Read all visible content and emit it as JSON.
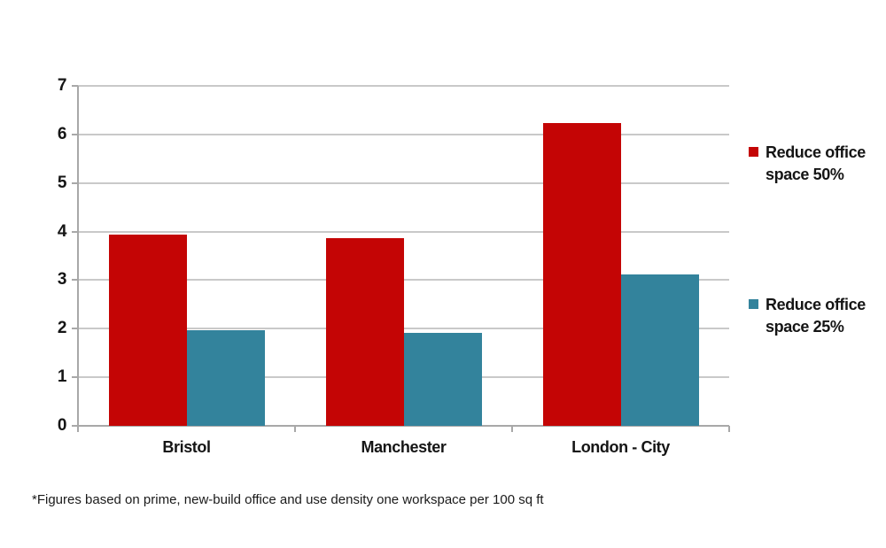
{
  "chart": {
    "footnote": "*Figures based on prime, new-build office and use density one workspace per 100 sq ft"
  },
  "chart_data": {
    "type": "bar",
    "title": "",
    "xlabel": "",
    "ylabel": "",
    "categories": [
      "Bristol",
      "Manchester",
      "London - City"
    ],
    "series": [
      {
        "name": "Reduce office space 50%",
        "color": "#c40505",
        "values": [
          3.93,
          3.86,
          6.24
        ]
      },
      {
        "name": "Reduce office space 25%",
        "color": "#33839c",
        "values": [
          1.96,
          1.92,
          3.12
        ]
      }
    ],
    "ylim": [
      0,
      7
    ],
    "ytick_step": 1,
    "ytick_labels": [
      "0",
      "1",
      "2",
      "3",
      "4",
      "5",
      "6",
      "7"
    ],
    "grid": true,
    "legend_position": "right",
    "legend": [
      {
        "lines": [
          "Reduce office",
          "space 50%"
        ],
        "color": "#c40505"
      },
      {
        "lines": [
          "Reduce office",
          "space 25%"
        ],
        "color": "#33839c"
      }
    ]
  }
}
